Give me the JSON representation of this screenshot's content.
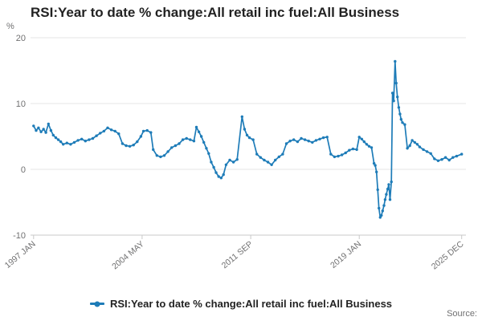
{
  "page": {
    "title": "RSI:Year to date % change:All retail inc fuel:All Business",
    "source_label": "Source:"
  },
  "chart_data": {
    "type": "line",
    "title": "RSI:Year to date % change:All retail inc fuel:All Business",
    "y_unit_label": "%",
    "grid": true,
    "legend_position": "bottom",
    "ylim": [
      -10,
      20
    ],
    "yticks": [
      20,
      10,
      0,
      -10
    ],
    "xlim": [
      1996.9,
      2026.1
    ],
    "xticks": [
      {
        "pos": 1997.0,
        "label": "1997 JAN"
      },
      {
        "pos": 2004.33,
        "label": "2004 MAY"
      },
      {
        "pos": 2011.67,
        "label": "2011 SEP"
      },
      {
        "pos": 2019.0,
        "label": "2019 JAN"
      },
      {
        "pos": 2025.92,
        "label": "2025 DEC"
      }
    ],
    "colors": {
      "accent": "#1e7cb8",
      "grid": "#e6e6e6",
      "axis": "#c9c9c9",
      "tick_text": "#707071",
      "title_text": "#222222"
    },
    "series": [
      {
        "name": "RSI:Year to date % change:All retail inc fuel:All Business",
        "color": "#1e7cb8",
        "marker": "circle",
        "points": [
          [
            1997.0,
            6.6
          ],
          [
            1997.17,
            5.9
          ],
          [
            1997.33,
            6.3
          ],
          [
            1997.5,
            5.7
          ],
          [
            1997.67,
            6.1
          ],
          [
            1997.83,
            5.6
          ],
          [
            1998.0,
            6.9
          ],
          [
            1998.17,
            5.9
          ],
          [
            1998.33,
            5.2
          ],
          [
            1998.5,
            4.8
          ],
          [
            1998.67,
            4.5
          ],
          [
            1998.83,
            4.2
          ],
          [
            1999.0,
            3.8
          ],
          [
            1999.25,
            4.0
          ],
          [
            1999.5,
            3.8
          ],
          [
            1999.75,
            4.1
          ],
          [
            2000.0,
            4.4
          ],
          [
            2000.25,
            4.6
          ],
          [
            2000.5,
            4.3
          ],
          [
            2000.75,
            4.5
          ],
          [
            2001.0,
            4.7
          ],
          [
            2001.25,
            5.1
          ],
          [
            2001.5,
            5.5
          ],
          [
            2001.75,
            5.8
          ],
          [
            2002.0,
            6.3
          ],
          [
            2002.25,
            6.0
          ],
          [
            2002.5,
            5.8
          ],
          [
            2002.75,
            5.4
          ],
          [
            2003.0,
            3.9
          ],
          [
            2003.25,
            3.6
          ],
          [
            2003.5,
            3.5
          ],
          [
            2003.75,
            3.7
          ],
          [
            2004.0,
            4.2
          ],
          [
            2004.25,
            5.0
          ],
          [
            2004.42,
            5.8
          ],
          [
            2004.67,
            5.9
          ],
          [
            2004.92,
            5.6
          ],
          [
            2005.08,
            3.0
          ],
          [
            2005.33,
            2.1
          ],
          [
            2005.58,
            1.9
          ],
          [
            2005.83,
            2.1
          ],
          [
            2006.08,
            2.7
          ],
          [
            2006.33,
            3.3
          ],
          [
            2006.58,
            3.6
          ],
          [
            2006.83,
            3.9
          ],
          [
            2007.08,
            4.5
          ],
          [
            2007.33,
            4.7
          ],
          [
            2007.58,
            4.5
          ],
          [
            2007.83,
            4.3
          ],
          [
            2008.0,
            6.4
          ],
          [
            2008.17,
            5.7
          ],
          [
            2008.33,
            5.0
          ],
          [
            2008.5,
            4.1
          ],
          [
            2008.67,
            3.2
          ],
          [
            2008.83,
            2.4
          ],
          [
            2009.0,
            1.1
          ],
          [
            2009.17,
            0.3
          ],
          [
            2009.33,
            -0.5
          ],
          [
            2009.5,
            -1.1
          ],
          [
            2009.67,
            -1.3
          ],
          [
            2009.83,
            -0.8
          ],
          [
            2010.0,
            0.7
          ],
          [
            2010.25,
            1.4
          ],
          [
            2010.5,
            1.1
          ],
          [
            2010.75,
            1.5
          ],
          [
            2011.08,
            8.0
          ],
          [
            2011.25,
            6.1
          ],
          [
            2011.42,
            5.2
          ],
          [
            2011.58,
            4.8
          ],
          [
            2011.83,
            4.5
          ],
          [
            2012.08,
            2.3
          ],
          [
            2012.33,
            1.8
          ],
          [
            2012.58,
            1.4
          ],
          [
            2012.83,
            1.1
          ],
          [
            2013.08,
            0.7
          ],
          [
            2013.33,
            1.4
          ],
          [
            2013.58,
            1.9
          ],
          [
            2013.83,
            2.3
          ],
          [
            2014.08,
            3.9
          ],
          [
            2014.33,
            4.3
          ],
          [
            2014.58,
            4.5
          ],
          [
            2014.83,
            4.2
          ],
          [
            2015.08,
            4.7
          ],
          [
            2015.33,
            4.5
          ],
          [
            2015.58,
            4.3
          ],
          [
            2015.83,
            4.1
          ],
          [
            2016.08,
            4.4
          ],
          [
            2016.33,
            4.6
          ],
          [
            2016.58,
            4.8
          ],
          [
            2016.83,
            4.9
          ],
          [
            2017.08,
            2.3
          ],
          [
            2017.33,
            1.9
          ],
          [
            2017.58,
            2.0
          ],
          [
            2017.83,
            2.2
          ],
          [
            2018.08,
            2.5
          ],
          [
            2018.33,
            2.9
          ],
          [
            2018.58,
            3.1
          ],
          [
            2018.83,
            3.0
          ],
          [
            2019.0,
            4.9
          ],
          [
            2019.17,
            4.6
          ],
          [
            2019.33,
            4.2
          ],
          [
            2019.5,
            3.8
          ],
          [
            2019.67,
            3.5
          ],
          [
            2019.83,
            3.3
          ],
          [
            2020.0,
            0.9
          ],
          [
            2020.08,
            0.6
          ],
          [
            2020.17,
            -0.4
          ],
          [
            2020.25,
            -3.1
          ],
          [
            2020.33,
            -5.9
          ],
          [
            2020.42,
            -7.3
          ],
          [
            2020.5,
            -7.0
          ],
          [
            2020.58,
            -6.3
          ],
          [
            2020.67,
            -5.5
          ],
          [
            2020.75,
            -4.6
          ],
          [
            2020.83,
            -3.8
          ],
          [
            2020.92,
            -3.0
          ],
          [
            2021.0,
            -2.3
          ],
          [
            2021.08,
            -4.6
          ],
          [
            2021.17,
            -1.9
          ],
          [
            2021.25,
            11.6
          ],
          [
            2021.33,
            10.4
          ],
          [
            2021.42,
            16.4
          ],
          [
            2021.5,
            13.1
          ],
          [
            2021.58,
            11.0
          ],
          [
            2021.67,
            9.4
          ],
          [
            2021.75,
            8.4
          ],
          [
            2021.83,
            7.6
          ],
          [
            2021.92,
            7.1
          ],
          [
            2022.08,
            6.8
          ],
          [
            2022.25,
            3.2
          ],
          [
            2022.42,
            3.6
          ],
          [
            2022.58,
            4.4
          ],
          [
            2022.75,
            4.1
          ],
          [
            2022.92,
            3.8
          ],
          [
            2023.08,
            3.4
          ],
          [
            2023.33,
            3.0
          ],
          [
            2023.58,
            2.7
          ],
          [
            2023.83,
            2.4
          ],
          [
            2024.08,
            1.6
          ],
          [
            2024.33,
            1.3
          ],
          [
            2024.58,
            1.5
          ],
          [
            2024.83,
            1.8
          ],
          [
            2025.08,
            1.4
          ],
          [
            2025.33,
            1.8
          ],
          [
            2025.58,
            2.0
          ],
          [
            2025.92,
            2.3
          ]
        ]
      }
    ]
  }
}
